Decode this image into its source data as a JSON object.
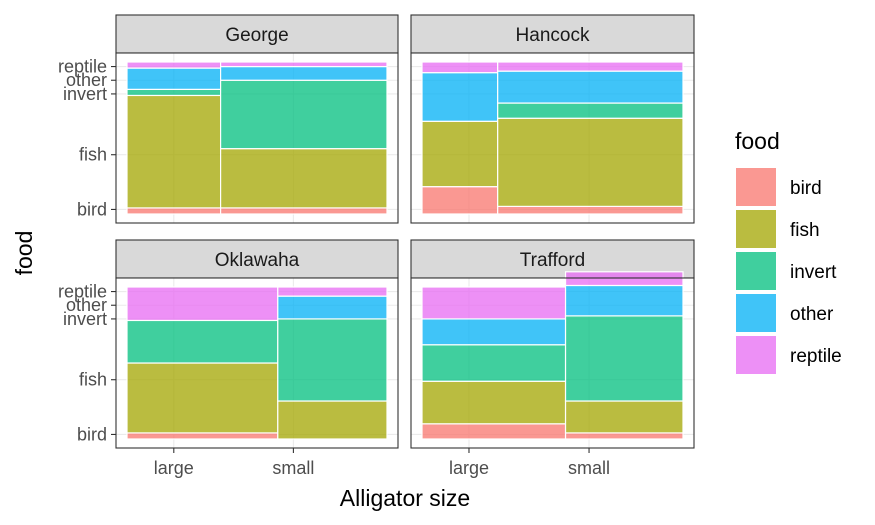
{
  "chart_data": {
    "type": "mosaic",
    "xlabel": "Alligator size",
    "ylabel": "food",
    "x_categories": [
      "large",
      "small"
    ],
    "y_axis_labels": [
      "bird",
      "fish",
      "invert",
      "other",
      "reptile"
    ],
    "legend": {
      "title": "food",
      "position": "right",
      "entries": [
        {
          "label": "bird",
          "color": "#F8766D"
        },
        {
          "label": "fish",
          "color": "#A3A500"
        },
        {
          "label": "invert",
          "color": "#00BF7D"
        },
        {
          "label": "other",
          "color": "#00B0F6"
        },
        {
          "label": "reptile",
          "color": "#E76BF3"
        }
      ]
    },
    "grid": true,
    "panels": [
      {
        "name": "George",
        "columns": [
          {
            "size": "large",
            "width_fraction": 0.36,
            "proportions": {
              "bird": 0.04,
              "fish": 0.74,
              "invert": 0.04,
              "other": 0.14,
              "reptile": 0.04
            }
          },
          {
            "size": "small",
            "width_fraction": 0.64,
            "proportions": {
              "bird": 0.04,
              "fish": 0.39,
              "invert": 0.45,
              "other": 0.09,
              "reptile": 0.03
            }
          }
        ]
      },
      {
        "name": "Hancock",
        "columns": [
          {
            "size": "large",
            "width_fraction": 0.29,
            "proportions": {
              "bird": 0.18,
              "fish": 0.43,
              "invert": 0.0,
              "other": 0.32,
              "reptile": 0.07
            }
          },
          {
            "size": "small",
            "width_fraction": 0.71,
            "proportions": {
              "bird": 0.05,
              "fish": 0.58,
              "invert": 0.1,
              "other": 0.21,
              "reptile": 0.06
            }
          }
        ]
      },
      {
        "name": "Oklawaha",
        "columns": [
          {
            "size": "large",
            "width_fraction": 0.58,
            "proportions": {
              "bird": 0.04,
              "fish": 0.46,
              "invert": 0.28,
              "other": 0.0,
              "reptile": 0.22
            }
          },
          {
            "size": "small",
            "width_fraction": 0.42,
            "proportions": {
              "bird": 0.0,
              "fish": 0.25,
              "invert": 0.54,
              "other": 0.15,
              "reptile": 0.06
            }
          }
        ]
      },
      {
        "name": "Trafford",
        "columns": [
          {
            "size": "large",
            "width_fraction": 0.55,
            "proportions": {
              "bird": 0.1,
              "fish": 0.28,
              "invert": 0.24,
              "other": 0.17,
              "reptile": 0.21
            }
          },
          {
            "size": "small",
            "width_fraction": 0.45,
            "proportions": {
              "bird": 0.04,
              "fish": 0.21,
              "invert": 0.56,
              "other": 0.2,
              "reptile": 0.09
            }
          }
        ]
      }
    ]
  }
}
